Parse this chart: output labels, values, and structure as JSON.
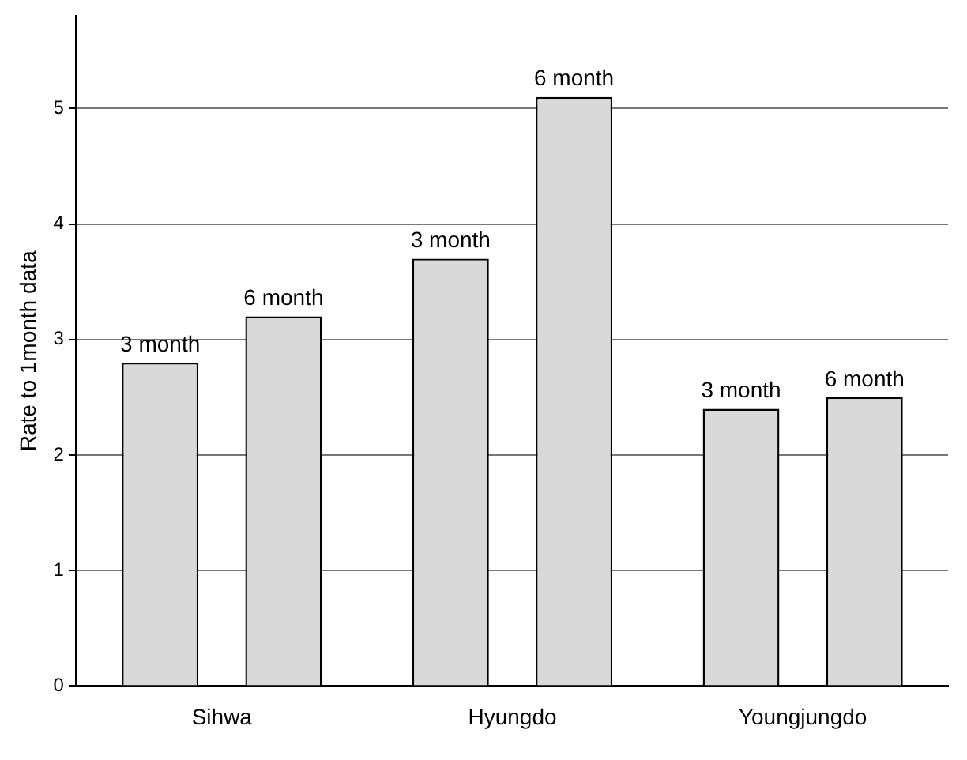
{
  "chart_data": {
    "type": "bar",
    "ylabel": "Rate to 1month data",
    "categories": [
      "Sihwa",
      "Hyungdo",
      "Youngjungdo"
    ],
    "series": [
      {
        "name": "3 month",
        "color": "#d9d9d9",
        "values": [
          2.8,
          3.7,
          2.4
        ]
      },
      {
        "name": "6 month",
        "color": "#d9d9d9",
        "values": [
          3.2,
          5.1,
          2.5
        ]
      }
    ],
    "ylim": [
      0,
      5.8
    ],
    "yticks": [
      0,
      1,
      2,
      3,
      4,
      5
    ],
    "grid": "y",
    "legend": false
  }
}
